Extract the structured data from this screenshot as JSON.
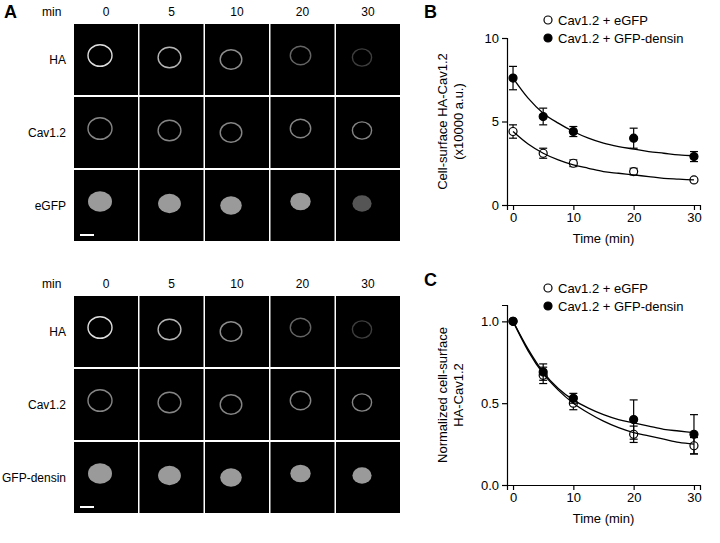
{
  "panel_a": {
    "label": "A",
    "time_unit": "min",
    "times": [
      "0",
      "5",
      "10",
      "20",
      "30"
    ],
    "groups": [
      [
        "HA",
        "Cav1.2",
        "eGFP"
      ],
      [
        "HA",
        "Cav1.2",
        "GFP-densin"
      ]
    ]
  },
  "chart_data": [
    {
      "type": "scatter",
      "title": "B",
      "xlabel": "Time (min)",
      "ylabel": [
        "Cell-surface HA-Cav1.2",
        "(x10000 a.u.)"
      ],
      "x": [
        0,
        5,
        10,
        20,
        30
      ],
      "xlim": [
        -1,
        31
      ],
      "xticks": [
        0,
        10,
        20,
        30
      ],
      "ylim": [
        0,
        10
      ],
      "yticks": [
        0,
        5,
        10
      ],
      "legend": "top-right",
      "series": [
        {
          "name": "Cav1.2 + eGFP",
          "type": "scatter",
          "marker": "open-circle",
          "color": "#000000",
          "values": [
            4.4,
            3.1,
            2.5,
            2.0,
            1.5
          ],
          "error": [
            0.4,
            0.3,
            0.2,
            0.2,
            0.1
          ]
        },
        {
          "name": "Cav1.2 + GFP-densin",
          "type": "scatter",
          "marker": "circle",
          "color": "#000000",
          "values": [
            7.6,
            5.3,
            4.4,
            4.0,
            2.9
          ],
          "error": [
            0.7,
            0.5,
            0.3,
            0.6,
            0.3
          ]
        },
        {
          "type": "line",
          "color": "#000000",
          "x": [
            0,
            2.5,
            5,
            7.5,
            10,
            12.5,
            15,
            17.5,
            20,
            22.5,
            25,
            27.5,
            30
          ],
          "values": [
            4.4,
            3.65,
            3.1,
            2.7,
            2.4,
            2.2,
            2.0,
            1.9,
            1.8,
            1.7,
            1.6,
            1.55,
            1.5
          ]
        },
        {
          "type": "line",
          "color": "#000000",
          "x": [
            0,
            2.5,
            5,
            7.5,
            10,
            12.5,
            15,
            17.5,
            20,
            22.5,
            25,
            27.5,
            30
          ],
          "values": [
            7.6,
            6.4,
            5.5,
            4.9,
            4.4,
            4.0,
            3.7,
            3.5,
            3.35,
            3.2,
            3.1,
            3.0,
            2.95
          ]
        }
      ]
    },
    {
      "type": "scatter",
      "title": "C",
      "xlabel": "Time (min)",
      "ylabel": [
        "Normalized cell-surface",
        "HA-Cav1.2"
      ],
      "x": [
        0,
        5,
        10,
        20,
        30
      ],
      "xlim": [
        -1,
        31
      ],
      "xticks": [
        0,
        10,
        20,
        30
      ],
      "ylim": [
        0,
        1.1
      ],
      "yticks": [
        {
          "value": 0,
          "label": "0.0"
        },
        {
          "value": 0.5,
          "label": "0.5"
        },
        {
          "value": 1,
          "label": "1.0"
        }
      ],
      "legend": "top-right",
      "series": [
        {
          "name": "Cav1.2 + eGFP",
          "type": "scatter",
          "marker": "open-circle",
          "color": "#000000",
          "values": [
            1.0,
            0.67,
            0.5,
            0.31,
            0.24
          ],
          "error": [
            0,
            0.05,
            0.04,
            0.05,
            0.05
          ]
        },
        {
          "name": "Cav1.2 + GFP-densin",
          "type": "scatter",
          "marker": "circle",
          "color": "#000000",
          "values": [
            1.0,
            0.69,
            0.53,
            0.4,
            0.31
          ],
          "error": [
            0,
            0.05,
            0.03,
            0.12,
            0.12
          ]
        },
        {
          "type": "line",
          "color": "#000000",
          "x": [
            0,
            2.5,
            5,
            7.5,
            10,
            12.5,
            15,
            17.5,
            20,
            22.5,
            25,
            27.5,
            30
          ],
          "values": [
            1.0,
            0.82,
            0.68,
            0.58,
            0.5,
            0.44,
            0.39,
            0.35,
            0.32,
            0.3,
            0.28,
            0.26,
            0.25
          ]
        },
        {
          "type": "line",
          "color": "#000000",
          "x": [
            0,
            2.5,
            5,
            7.5,
            10,
            12.5,
            15,
            17.5,
            20,
            22.5,
            25,
            27.5,
            30
          ],
          "values": [
            1.0,
            0.83,
            0.69,
            0.59,
            0.52,
            0.47,
            0.43,
            0.4,
            0.38,
            0.36,
            0.34,
            0.33,
            0.32
          ]
        }
      ]
    }
  ]
}
